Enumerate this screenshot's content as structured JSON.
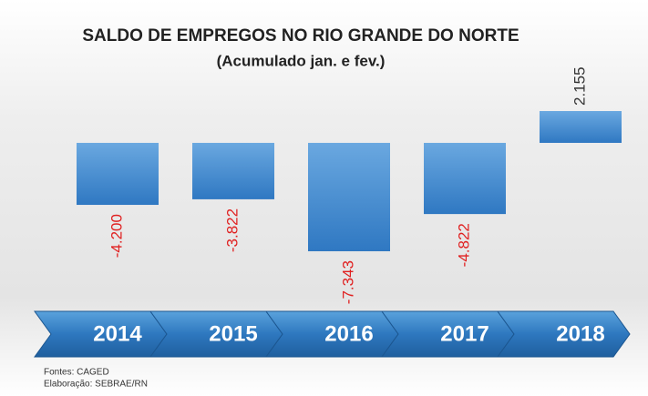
{
  "chart_data": {
    "type": "bar",
    "title": "SALDO DE EMPREGOS NO RIO GRANDE DO NORTE",
    "subtitle": "(Acumulado jan. e fev.)",
    "categories": [
      "2014",
      "2015",
      "2016",
      "2017",
      "2018"
    ],
    "values": [
      -4200,
      -3822,
      -7343,
      -4822,
      2155
    ],
    "value_labels": [
      "-4.200",
      "-3.822",
      "-7.343",
      "-4.822",
      "2.155"
    ],
    "color": "#3f87d0",
    "source": "Fontes: CAGED",
    "credit": "Elaboração: SEBRAE/RN"
  }
}
